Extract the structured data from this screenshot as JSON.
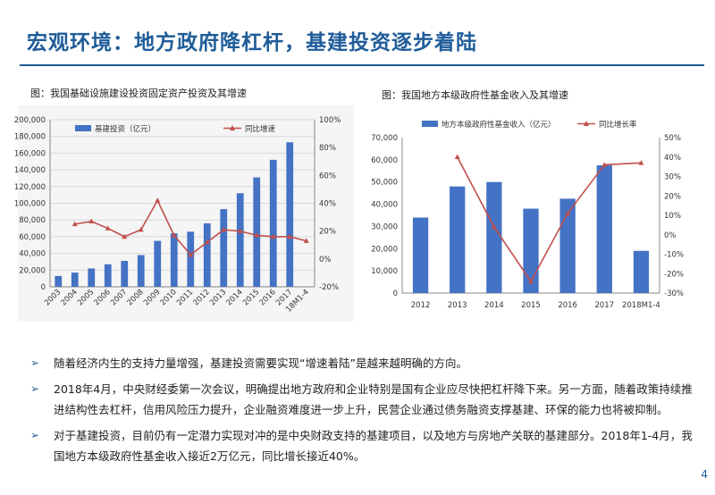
{
  "slide": {
    "title": "宏观环境：地方政府降杠杆，基建投资逐步着陆",
    "page_number": "4",
    "accent_color": "#1f5c99"
  },
  "chart1": {
    "caption": "图：我国基础设施建设投资固定资产投资及其增速"
  },
  "chart2": {
    "caption": "图：我国地方本级政府性基金收入及其增速"
  },
  "bullets": [
    {
      "text": "随着经济内生的支持力量增强，基建投资需要实现“增速着陆”是越来越明确的方向。"
    },
    {
      "text": "2018年4月，中央财经委第一次会议，明确提出地方政府和企业特别是国有企业应尽快把杠杆降下来。另一方面，随着政策持续推进结构性去杠杆，信用风险压力提升，企业融资难度进一步上升，民营企业通过债务融资支撑基建、环保的能力也将被抑制。"
    },
    {
      "text": "对于基建投资，目前仍有一定潜力实现对冲的是中央财政支持的基建项目，以及地方与房地产关联的基建部分。2018年1-4月，我国地方本级政府性基金收入接近2万亿元，同比增长接近40%。"
    }
  ],
  "chart_data": [
    {
      "type": "bar",
      "title": "",
      "categories": [
        "2003",
        "2004",
        "2005",
        "2006",
        "2007",
        "2008",
        "2009",
        "2010",
        "2011",
        "2012",
        "2013",
        "2014",
        "2015",
        "2016",
        "2017",
        "18M1-4"
      ],
      "series": [
        {
          "name": "基建投资（亿元）",
          "axis": "left",
          "type": "bar",
          "color": "#4472c4",
          "values": [
            13000,
            17000,
            22000,
            27000,
            31000,
            38000,
            55000,
            64000,
            66000,
            76000,
            93000,
            112000,
            131000,
            152000,
            173000,
            null
          ]
        },
        {
          "name": "同比增速",
          "axis": "right",
          "type": "line",
          "color": "#c0504d",
          "values": [
            null,
            25,
            27,
            22,
            16,
            21,
            42,
            17,
            3,
            12,
            21,
            20,
            17,
            16,
            16,
            13
          ]
        }
      ],
      "ylim_left": [
        0,
        200000
      ],
      "yticks_left": [
        "0",
        "20,000",
        "40,000",
        "60,000",
        "80,000",
        "100,000",
        "120,000",
        "140,000",
        "160,000",
        "180,000",
        "200,000"
      ],
      "ylim_right": [
        -20,
        100
      ],
      "yticks_right": [
        "-20%",
        "0%",
        "20%",
        "40%",
        "60%",
        "80%",
        "100%"
      ],
      "legend_position": "top",
      "grid": true
    },
    {
      "type": "bar",
      "title": "",
      "categories": [
        "2012",
        "2013",
        "2014",
        "2015",
        "2016",
        "2017",
        "2018M1-4"
      ],
      "series": [
        {
          "name": "地方本级政府性基金收入（亿元）",
          "axis": "left",
          "type": "bar",
          "color": "#4472c4",
          "values": [
            34000,
            48000,
            50000,
            38000,
            42500,
            57500,
            19000
          ]
        },
        {
          "name": "同比增长率",
          "axis": "right",
          "type": "line",
          "color": "#c0504d",
          "values": [
            null,
            40,
            4,
            -24,
            11,
            36,
            37
          ]
        }
      ],
      "ylim_left": [
        0,
        70000
      ],
      "yticks_left": [
        "0",
        "10,000",
        "20,000",
        "30,000",
        "40,000",
        "50,000",
        "60,000",
        "70,000"
      ],
      "ylim_right": [
        -30,
        50
      ],
      "yticks_right": [
        "-30%",
        "-20%",
        "-10%",
        "0%",
        "10%",
        "20%",
        "30%",
        "40%",
        "50%"
      ],
      "legend_position": "top",
      "grid": false
    }
  ]
}
